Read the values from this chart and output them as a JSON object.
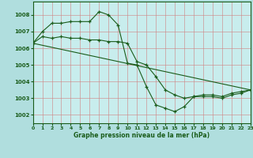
{
  "title": "Graphe pression niveau de la mer (hPa)",
  "background_color": "#b0dede",
  "plot_bg_color": "#c8eded",
  "grid_color": "#d08080",
  "line_color": "#1a5c1a",
  "marker_color": "#1a5c1a",
  "xlim": [
    0,
    23
  ],
  "ylim": [
    1001.5,
    1008.8
  ],
  "yticks": [
    1002,
    1003,
    1004,
    1005,
    1006,
    1007,
    1008
  ],
  "xticks": [
    0,
    1,
    2,
    3,
    4,
    5,
    6,
    7,
    8,
    9,
    10,
    11,
    12,
    13,
    14,
    15,
    16,
    17,
    18,
    19,
    20,
    21,
    22,
    23
  ],
  "series1": [
    1006.3,
    1007.0,
    1007.5,
    1007.5,
    1007.6,
    1007.6,
    1007.6,
    1008.2,
    1008.0,
    1007.4,
    1005.1,
    1005.0,
    1003.7,
    1002.6,
    1002.4,
    1002.2,
    1002.5,
    1003.1,
    1003.2,
    1003.2,
    1003.1,
    1003.3,
    1003.4,
    1003.5
  ],
  "series2": [
    1006.3,
    1006.7,
    1006.6,
    1006.7,
    1006.6,
    1006.6,
    1006.5,
    1006.5,
    1006.4,
    1006.4,
    1006.3,
    1005.2,
    1005.0,
    1004.3,
    1003.5,
    1003.2,
    1003.0,
    1003.1,
    1003.1,
    1003.1,
    1003.0,
    1003.2,
    1003.3,
    1003.5
  ],
  "series3": [
    null,
    null,
    null,
    null,
    null,
    null,
    null,
    null,
    null,
    null,
    1005.0,
    1004.8,
    1003.7,
    1002.6,
    1002.4,
    1002.2,
    1002.6,
    1003.1,
    1003.2,
    1003.2,
    null,
    null,
    null,
    null
  ]
}
